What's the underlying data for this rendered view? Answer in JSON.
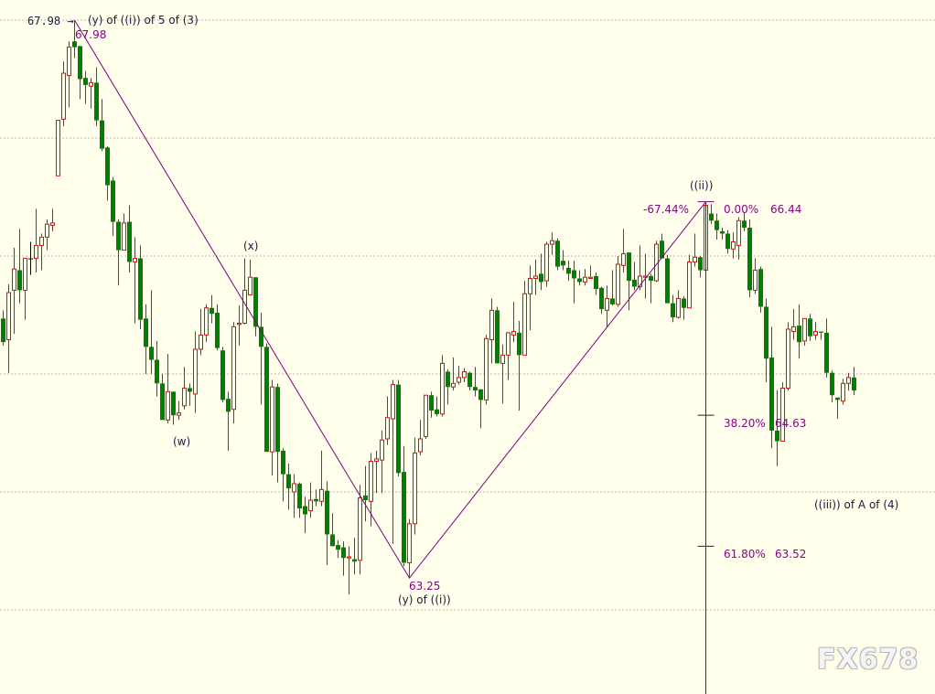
{
  "chart_data": {
    "type": "candlestick",
    "ylim": [
      62.5,
      68.0
    ],
    "grid": true,
    "colors": {
      "up": "#FF0000",
      "down": "#008000",
      "annotation": "#800080",
      "background": "#FFFFEB"
    },
    "ohlc": [
      [
        65.45,
        65.52,
        65.22,
        65.25
      ],
      [
        65.27,
        65.74,
        64.99,
        65.67
      ],
      [
        65.69,
        66.05,
        65.32,
        65.87
      ],
      [
        65.86,
        66.21,
        65.58,
        65.69
      ],
      [
        65.69,
        65.96,
        65.44,
        65.96
      ],
      [
        65.96,
        66.1,
        65.82,
        65.96
      ],
      [
        65.96,
        66.38,
        65.84,
        66.07
      ],
      [
        66.07,
        66.17,
        65.86,
        66.14
      ],
      [
        66.14,
        66.29,
        66.03,
        66.25
      ],
      [
        66.24,
        66.38,
        66.19,
        66.26
      ],
      [
        66.66,
        67.13,
        66.66,
        67.13
      ],
      [
        67.14,
        67.63,
        67.08,
        67.53
      ],
      [
        67.51,
        67.8,
        67.24,
        67.75
      ],
      [
        67.8,
        67.98,
        67.66,
        67.75
      ],
      [
        67.76,
        67.76,
        67.31,
        67.48
      ],
      [
        67.49,
        67.55,
        67.27,
        67.43
      ],
      [
        67.42,
        67.49,
        67.23,
        67.45
      ],
      [
        67.45,
        67.58,
        67.08,
        67.13
      ],
      [
        67.13,
        67.31,
        66.87,
        66.89
      ],
      [
        66.9,
        66.91,
        66.45,
        66.58
      ],
      [
        66.62,
        66.65,
        66.15,
        66.27
      ],
      [
        66.27,
        66.29,
        65.73,
        66.03
      ],
      [
        66.03,
        66.34,
        66.03,
        66.26
      ],
      [
        66.27,
        66.41,
        65.84,
        65.93
      ],
      [
        65.93,
        66.14,
        65.41,
        65.96
      ],
      [
        65.96,
        66.07,
        65.36,
        65.44
      ],
      [
        65.45,
        65.57,
        64.98,
        65.21
      ],
      [
        65.21,
        65.69,
        64.98,
        65.1
      ],
      [
        65.1,
        65.26,
        64.79,
        64.9
      ],
      [
        64.9,
        64.98,
        64.59,
        64.59
      ],
      [
        64.59,
        65.15,
        64.56,
        64.83
      ],
      [
        64.83,
        64.83,
        64.55,
        64.63
      ],
      [
        64.63,
        64.75,
        64.59,
        64.65
      ],
      [
        64.71,
        65.04,
        64.68,
        64.86
      ],
      [
        64.86,
        64.9,
        64.71,
        64.83
      ],
      [
        64.81,
        65.34,
        64.65,
        65.19
      ],
      [
        65.19,
        65.53,
        65.14,
        65.31
      ],
      [
        65.31,
        65.57,
        65.25,
        65.54
      ],
      [
        65.54,
        65.65,
        65.41,
        65.49
      ],
      [
        65.5,
        65.57,
        65.18,
        65.2
      ],
      [
        65.18,
        65.21,
        64.74,
        64.76
      ],
      [
        64.77,
        64.83,
        64.33,
        64.66
      ],
      [
        64.68,
        65.42,
        64.56,
        65.38
      ],
      [
        65.4,
        65.56,
        65.22,
        65.41
      ],
      [
        65.41,
        65.96,
        65.4,
        65.69
      ],
      [
        65.65,
        65.95,
        65.65,
        65.8
      ],
      [
        65.8,
        65.8,
        65.3,
        65.38
      ],
      [
        65.38,
        65.5,
        64.72,
        65.21
      ],
      [
        65.21,
        65.24,
        64.32,
        64.32
      ],
      [
        64.32,
        64.93,
        64.12,
        64.87
      ],
      [
        64.87,
        64.9,
        64.06,
        64.32
      ],
      [
        64.33,
        64.35,
        63.9,
        64.13
      ],
      [
        64.13,
        64.22,
        63.83,
        64.01
      ],
      [
        63.98,
        64.13,
        63.76,
        64.05
      ],
      [
        64.05,
        64.06,
        63.76,
        63.84
      ],
      [
        63.86,
        63.94,
        63.63,
        63.79
      ],
      [
        63.82,
        64.06,
        63.76,
        63.91
      ],
      [
        63.92,
        64.0,
        63.86,
        63.9
      ],
      [
        63.9,
        64.33,
        63.86,
        64.0
      ],
      [
        63.99,
        64.07,
        63.36,
        63.62
      ],
      [
        63.62,
        63.8,
        63.52,
        63.52
      ],
      [
        63.53,
        63.57,
        63.42,
        63.49
      ],
      [
        63.51,
        63.56,
        63.27,
        63.42
      ],
      [
        63.42,
        63.52,
        63.11,
        63.43
      ],
      [
        63.41,
        63.59,
        63.28,
        63.39
      ],
      [
        63.4,
        64.04,
        63.28,
        63.93
      ],
      [
        63.95,
        64.2,
        63.73,
        63.91
      ],
      [
        63.9,
        64.31,
        63.69,
        64.24
      ],
      [
        64.24,
        64.33,
        63.97,
        64.26
      ],
      [
        64.25,
        64.5,
        63.97,
        64.42
      ],
      [
        64.43,
        64.79,
        64.38,
        64.61
      ],
      [
        64.6,
        64.93,
        63.54,
        64.89
      ],
      [
        64.89,
        64.93,
        64.11,
        64.14
      ],
      [
        64.15,
        64.37,
        63.35,
        63.38
      ],
      [
        63.38,
        63.75,
        63.25,
        63.71
      ],
      [
        63.71,
        64.44,
        63.62,
        64.31
      ],
      [
        64.32,
        64.59,
        64.29,
        64.43
      ],
      [
        64.45,
        64.8,
        64.43,
        64.8
      ],
      [
        64.8,
        64.83,
        64.61,
        64.67
      ],
      [
        64.68,
        64.79,
        64.62,
        64.64
      ],
      [
        64.64,
        65.14,
        64.62,
        65.07
      ],
      [
        65.0,
        65.02,
        64.72,
        64.87
      ],
      [
        64.87,
        65.12,
        64.84,
        64.9
      ],
      [
        64.91,
        65.05,
        64.89,
        64.95
      ],
      [
        64.95,
        65.03,
        64.91,
        65.0
      ],
      [
        64.99,
        65.0,
        64.84,
        64.87
      ],
      [
        64.87,
        65.04,
        64.79,
        64.84
      ],
      [
        64.85,
        64.85,
        64.52,
        64.76
      ],
      [
        64.76,
        65.31,
        64.72,
        65.28
      ],
      [
        65.27,
        65.62,
        65.07,
        65.52
      ],
      [
        65.52,
        65.55,
        65.07,
        65.07
      ],
      [
        65.07,
        65.23,
        64.73,
        65.14
      ],
      [
        65.14,
        65.33,
        64.93,
        65.33
      ],
      [
        65.31,
        65.59,
        65.25,
        65.34
      ],
      [
        65.33,
        65.43,
        64.67,
        65.14
      ],
      [
        65.14,
        65.77,
        65.14,
        65.66
      ],
      [
        65.66,
        65.9,
        65.35,
        65.79
      ],
      [
        65.79,
        65.95,
        65.65,
        65.81
      ],
      [
        65.83,
        66.0,
        65.69,
        65.76
      ],
      [
        65.77,
        66.1,
        65.72,
        66.08
      ],
      [
        66.08,
        66.18,
        65.99,
        66.11
      ],
      [
        66.11,
        66.13,
        65.86,
        65.89
      ],
      [
        65.94,
        66.03,
        65.86,
        65.9
      ],
      [
        65.88,
        65.94,
        65.77,
        65.83
      ],
      [
        65.86,
        65.94,
        65.58,
        65.79
      ],
      [
        65.79,
        65.86,
        65.73,
        65.76
      ],
      [
        65.76,
        65.87,
        65.73,
        65.8
      ],
      [
        65.79,
        65.9,
        65.79,
        65.8
      ],
      [
        65.81,
        65.84,
        65.65,
        65.7
      ],
      [
        65.71,
        65.72,
        65.49,
        65.53
      ],
      [
        65.52,
        65.73,
        65.38,
        65.62
      ],
      [
        65.62,
        65.86,
        65.56,
        65.57
      ],
      [
        65.57,
        65.98,
        65.55,
        65.91
      ],
      [
        65.9,
        66.21,
        65.84,
        66.0
      ],
      [
        66.01,
        66.01,
        65.52,
        65.77
      ],
      [
        65.78,
        65.93,
        65.69,
        65.72
      ],
      [
        65.72,
        66.07,
        65.69,
        65.81
      ],
      [
        65.8,
        66.0,
        65.62,
        65.81
      ],
      [
        65.81,
        65.83,
        65.58,
        65.77
      ],
      [
        65.77,
        66.11,
        65.76,
        66.08
      ],
      [
        66.11,
        66.17,
        65.96,
        65.96
      ],
      [
        65.96,
        65.99,
        65.58,
        65.58
      ],
      [
        65.58,
        65.65,
        65.42,
        65.46
      ],
      [
        65.46,
        65.69,
        65.45,
        65.62
      ],
      [
        65.62,
        65.64,
        65.44,
        65.54
      ],
      [
        65.54,
        65.99,
        65.54,
        65.93
      ],
      [
        65.93,
        66.17,
        65.89,
        65.97
      ],
      [
        65.97,
        65.98,
        65.8,
        65.86
      ],
      [
        65.86,
        66.44,
        65.8,
        66.41
      ],
      [
        66.34,
        66.42,
        66.25,
        66.28
      ],
      [
        66.28,
        66.34,
        66.12,
        66.2
      ],
      [
        66.19,
        66.22,
        66.12,
        66.17
      ],
      [
        66.17,
        66.2,
        66.0,
        66.04
      ],
      [
        66.04,
        66.18,
        65.96,
        66.1
      ],
      [
        66.07,
        66.31,
        65.95,
        66.28
      ],
      [
        66.28,
        66.35,
        66.19,
        66.22
      ],
      [
        66.22,
        66.29,
        65.63,
        65.69
      ],
      [
        65.69,
        65.96,
        65.66,
        65.86
      ],
      [
        65.87,
        65.89,
        65.5,
        65.55
      ],
      [
        65.55,
        65.62,
        64.91,
        65.11
      ],
      [
        65.12,
        65.38,
        64.35,
        64.5
      ],
      [
        64.5,
        64.84,
        64.2,
        64.41
      ],
      [
        64.41,
        64.91,
        64.41,
        64.86
      ],
      [
        64.86,
        65.42,
        64.84,
        65.36
      ],
      [
        65.34,
        65.53,
        65.27,
        65.38
      ],
      [
        65.39,
        65.57,
        65.11,
        65.25
      ],
      [
        65.26,
        65.45,
        65.22,
        65.45
      ],
      [
        65.45,
        65.49,
        65.26,
        65.3
      ],
      [
        65.31,
        65.42,
        65.27,
        65.34
      ],
      [
        65.34,
        65.34,
        65.27,
        65.33
      ],
      [
        65.33,
        65.45,
        64.95,
        64.99
      ],
      [
        64.99,
        65.01,
        64.74,
        64.8
      ],
      [
        64.78,
        64.78,
        64.6,
        64.76
      ],
      [
        64.75,
        64.94,
        64.72,
        64.9
      ],
      [
        64.9,
        64.99,
        64.84,
        64.95
      ],
      [
        64.95,
        65.04,
        64.8,
        64.84
      ]
    ],
    "wave_line": [
      {
        "bar": 13,
        "price": 67.98
      },
      {
        "bar": 74,
        "price": 63.25
      },
      {
        "bar": 128,
        "price": 66.44
      }
    ],
    "fibonacci": {
      "anchor_bar": 128,
      "levels": [
        {
          "pct": "0.00%",
          "price": 66.44,
          "value_label": "66.44"
        },
        {
          "pct": "38.20%",
          "price": 64.63,
          "value_label": "64.63"
        },
        {
          "pct": "61.80%",
          "price": 63.52,
          "value_label": "63.52"
        }
      ],
      "retracement_label": "-67.44%"
    },
    "price_marker": {
      "label": "67.98 →",
      "price": 67.98
    },
    "annotations": {
      "top_wave": "(y) of ((i)) of 5 of (3)",
      "top_price": "67.98",
      "x_wave": "(x)",
      "w_wave": "(w)",
      "ii_wave": "((ii))",
      "low_price": "63.25",
      "low_wave": "(y) of ((i))",
      "iii_wave": "((iii)) of A of (4)"
    }
  },
  "watermark": "FX678"
}
